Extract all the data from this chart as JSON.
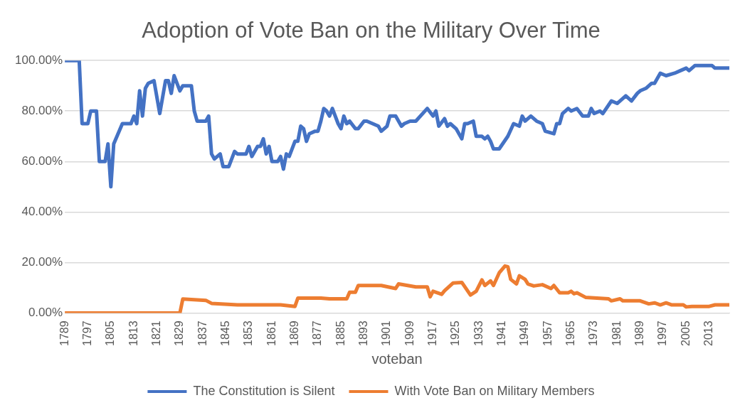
{
  "chart_data": {
    "type": "line",
    "title": "Adoption of Vote Ban on the Military Over Time",
    "xlabel": "voteban",
    "xlim": [
      1789,
      2020
    ],
    "xticks": [
      1789,
      1797,
      1805,
      1813,
      1821,
      1829,
      1837,
      1845,
      1853,
      1861,
      1869,
      1877,
      1885,
      1893,
      1901,
      1909,
      1917,
      1925,
      1933,
      1941,
      1949,
      1957,
      1965,
      1973,
      1981,
      1989,
      1997,
      2005,
      2013
    ],
    "ylim": [
      0,
      100
    ],
    "yticks": [
      {
        "value": 0,
        "label": "0.00%"
      },
      {
        "value": 20,
        "label": "20.00%"
      },
      {
        "value": 40,
        "label": "40.00%"
      },
      {
        "value": 60,
        "label": "60.00%"
      },
      {
        "value": 80,
        "label": "80.00%"
      },
      {
        "value": 100,
        "label": "100.00%"
      }
    ],
    "grid": "y",
    "legend": "bottom",
    "marker": "none",
    "line_style": "solid",
    "series": [
      {
        "name": "The Constitution is Silent",
        "color": "#4472c4",
        "x": [
          1789,
          1794,
          1795,
          1797,
          1798,
          1800,
          1801,
          1803,
          1804,
          1805,
          1806,
          1809,
          1812,
          1813,
          1814,
          1815,
          1816,
          1817,
          1818,
          1820,
          1822,
          1824,
          1825,
          1826,
          1827,
          1829,
          1830,
          1833,
          1834,
          1835,
          1838,
          1839,
          1840,
          1841,
          1843,
          1844,
          1846,
          1848,
          1849,
          1852,
          1853,
          1854,
          1856,
          1857,
          1858,
          1859,
          1860,
          1861,
          1863,
          1864,
          1865,
          1866,
          1867,
          1869,
          1870,
          1871,
          1872,
          1873,
          1874,
          1876,
          1877,
          1878,
          1879,
          1880,
          1881,
          1882,
          1884,
          1885,
          1886,
          1887,
          1888,
          1890,
          1891,
          1893,
          1894,
          1898,
          1899,
          1901,
          1902,
          1904,
          1906,
          1907,
          1909,
          1911,
          1915,
          1917,
          1918,
          1919,
          1921,
          1922,
          1923,
          1925,
          1927,
          1928,
          1929,
          1931,
          1932,
          1934,
          1935,
          1936,
          1937,
          1938,
          1940,
          1943,
          1945,
          1947,
          1948,
          1949,
          1951,
          1953,
          1955,
          1956,
          1959,
          1960,
          1961,
          1962,
          1964,
          1965,
          1967,
          1969,
          1971,
          1972,
          1973,
          1975,
          1976,
          1979,
          1981,
          1984,
          1986,
          1988,
          1989,
          1991,
          1993,
          1994,
          1996,
          1998,
          2001,
          2003,
          2005,
          2006,
          2008,
          2014,
          2015,
          2020
        ],
        "values": [
          100,
          100,
          75,
          75,
          80,
          80,
          60,
          60,
          67,
          50,
          67,
          75,
          75,
          78,
          75,
          88,
          78,
          89,
          91,
          92,
          79,
          92,
          92,
          87,
          94,
          88,
          90,
          90,
          80,
          76,
          76,
          78,
          63,
          61,
          63,
          58,
          58,
          64,
          63,
          63,
          66,
          62,
          66,
          66,
          69,
          63,
          66,
          60,
          60,
          62,
          57,
          63,
          62,
          68,
          68,
          74,
          73,
          68,
          71,
          72,
          72,
          76,
          81,
          80,
          78,
          81,
          75,
          73,
          78,
          75,
          76,
          73,
          73,
          76,
          76,
          74,
          72,
          74,
          78,
          78,
          74,
          75,
          76,
          76,
          81,
          78,
          80,
          74,
          77,
          74,
          75,
          73,
          69,
          75,
          75,
          76,
          70,
          70,
          69,
          70,
          68,
          65,
          65,
          70,
          75,
          74,
          78,
          76,
          78,
          76,
          75,
          72,
          71,
          75,
          75,
          79,
          81,
          80,
          81,
          78,
          78,
          81,
          79,
          80,
          79,
          84,
          83,
          86,
          84,
          87,
          88,
          89,
          91,
          91,
          95,
          94,
          95,
          96,
          97,
          96,
          98,
          98,
          97,
          97
        ]
      },
      {
        "name": "With Vote Ban on Military Members",
        "color": "#ed7d31",
        "x": [
          1789,
          1829,
          1830,
          1838,
          1840,
          1849,
          1864,
          1869,
          1870,
          1878,
          1881,
          1887,
          1888,
          1890,
          1891,
          1899,
          1904,
          1905,
          1911,
          1915,
          1916,
          1917,
          1920,
          1921,
          1924,
          1927,
          1930,
          1932,
          1934,
          1935,
          1937,
          1938,
          1940,
          1942,
          1943,
          1944,
          1946,
          1947,
          1949,
          1950,
          1952,
          1955,
          1958,
          1959,
          1961,
          1964,
          1965,
          1966,
          1967,
          1970,
          1978,
          1979,
          1982,
          1983,
          1989,
          1992,
          1994,
          1996,
          1998,
          2000,
          2004,
          2005,
          2007,
          2013,
          2015,
          2020
        ],
        "values": [
          0,
          0,
          5.5,
          5,
          3.8,
          3.2,
          3.2,
          2.6,
          5.9,
          5.9,
          5.6,
          5.6,
          8.2,
          8.2,
          10.9,
          10.9,
          9.7,
          11.5,
          10.3,
          10.3,
          6.4,
          8.6,
          7.4,
          8.8,
          11.9,
          12.1,
          7.1,
          8.6,
          13.1,
          10.9,
          12.7,
          10.9,
          15.9,
          18.6,
          18.3,
          13.3,
          11.5,
          14.7,
          13.3,
          11.5,
          10.7,
          11.2,
          9.7,
          10.9,
          8,
          8,
          8.6,
          7.6,
          8,
          6.2,
          5.6,
          4.8,
          5.6,
          4.8,
          4.8,
          3.6,
          4,
          3.2,
          4,
          3.2,
          3.2,
          2.4,
          2.6,
          2.6,
          3.2,
          3.2
        ]
      }
    ]
  }
}
